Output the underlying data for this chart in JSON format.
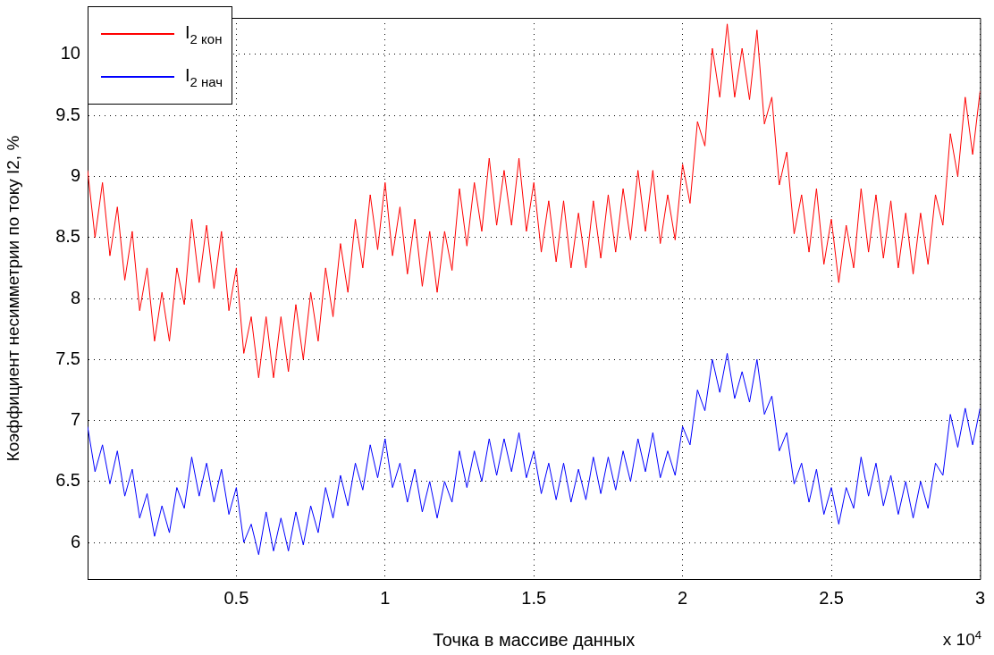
{
  "chart_data": {
    "type": "line",
    "xlabel": "Точка в массиве данных",
    "ylabel": "Коэффициент несимметрии по току I2, %",
    "annotations": [
      "x 10$^{4}$"
    ],
    "x": [
      0,
      0.025,
      0.05,
      0.075,
      0.1,
      0.125,
      0.15,
      0.175,
      0.2,
      0.225,
      0.25,
      0.275,
      0.3,
      0.325,
      0.35,
      0.375,
      0.4,
      0.425,
      0.45,
      0.475,
      0.5,
      0.525,
      0.55,
      0.575,
      0.6,
      0.625,
      0.65,
      0.675,
      0.7,
      0.725,
      0.75,
      0.775,
      0.8,
      0.825,
      0.85,
      0.875,
      0.9,
      0.925,
      0.95,
      0.975,
      1,
      1.025,
      1.05,
      1.075,
      1.1,
      1.125,
      1.15,
      1.175,
      1.2,
      1.225,
      1.25,
      1.275,
      1.3,
      1.325,
      1.35,
      1.375,
      1.4,
      1.425,
      1.45,
      1.475,
      1.5,
      1.525,
      1.55,
      1.575,
      1.6,
      1.625,
      1.65,
      1.675,
      1.7,
      1.725,
      1.75,
      1.775,
      1.8,
      1.825,
      1.85,
      1.875,
      1.9,
      1.925,
      1.95,
      1.975,
      2,
      2.025,
      2.05,
      2.075,
      2.1,
      2.125,
      2.15,
      2.175,
      2.2,
      2.225,
      2.25,
      2.275,
      2.3,
      2.325,
      2.35,
      2.375,
      2.4,
      2.425,
      2.45,
      2.475,
      2.5,
      2.525,
      2.55,
      2.575,
      2.6,
      2.625,
      2.65,
      2.675,
      2.7,
      2.725,
      2.75,
      2.775,
      2.8,
      2.825,
      2.85,
      2.875,
      2.9,
      2.925,
      2.95,
      2.975,
      3
    ],
    "series": [
      {
        "name": "I$_{2 кон}$",
        "color": "#ff0000",
        "values": [
          9.05,
          8.5,
          8.95,
          8.35,
          8.75,
          8.15,
          8.55,
          7.9,
          8.25,
          7.65,
          8.05,
          7.65,
          8.25,
          7.95,
          8.65,
          8.13,
          8.6,
          8.08,
          8.55,
          7.9,
          8.25,
          7.55,
          7.85,
          7.35,
          7.85,
          7.35,
          7.85,
          7.4,
          7.95,
          7.5,
          8.05,
          7.65,
          8.25,
          7.85,
          8.45,
          8.05,
          8.65,
          8.25,
          8.85,
          8.4,
          8.95,
          8.35,
          8.75,
          8.2,
          8.65,
          8.1,
          8.55,
          8.05,
          8.55,
          8.23,
          8.9,
          8.43,
          8.95,
          8.55,
          9.15,
          8.6,
          9.05,
          8.6,
          9.15,
          8.55,
          8.95,
          8.38,
          8.8,
          8.3,
          8.8,
          8.25,
          8.7,
          8.25,
          8.8,
          8.33,
          8.85,
          8.38,
          8.9,
          8.48,
          9.05,
          8.55,
          9.05,
          8.45,
          8.85,
          8.48,
          9.1,
          8.78,
          9.45,
          9.25,
          10.05,
          9.65,
          10.25,
          9.65,
          10.05,
          9.63,
          10.2,
          9.43,
          9.65,
          8.93,
          9.2,
          8.53,
          8.85,
          8.38,
          8.9,
          8.28,
          8.65,
          8.13,
          8.6,
          8.25,
          8.9,
          8.38,
          8.85,
          8.33,
          8.8,
          8.25,
          8.7,
          8.2,
          8.7,
          8.28,
          8.85,
          8.6,
          9.35,
          9,
          9.65,
          9.18,
          9.7
        ]
      },
      {
        "name": "I$_{2 нач}$",
        "color": "#0000ff",
        "values": [
          6.95,
          6.58,
          6.8,
          6.48,
          6.75,
          6.38,
          6.6,
          6.2,
          6.4,
          6.05,
          6.3,
          6.08,
          6.45,
          6.28,
          6.7,
          6.38,
          6.65,
          6.33,
          6.6,
          6.23,
          6.45,
          6,
          6.15,
          5.9,
          6.25,
          5.93,
          6.2,
          5.93,
          6.25,
          5.98,
          6.3,
          6.08,
          6.45,
          6.2,
          6.55,
          6.3,
          6.65,
          6.43,
          6.8,
          6.53,
          6.85,
          6.45,
          6.65,
          6.33,
          6.6,
          6.25,
          6.5,
          6.2,
          6.5,
          6.33,
          6.75,
          6.45,
          6.75,
          6.5,
          6.85,
          6.55,
          6.85,
          6.58,
          6.9,
          6.53,
          6.75,
          6.4,
          6.65,
          6.35,
          6.65,
          6.33,
          6.6,
          6.35,
          6.7,
          6.4,
          6.7,
          6.43,
          6.75,
          6.5,
          6.85,
          6.58,
          6.9,
          6.53,
          6.75,
          6.55,
          6.95,
          6.8,
          7.25,
          7.08,
          7.5,
          7.23,
          7.55,
          7.18,
          7.4,
          7.15,
          7.5,
          7.05,
          7.2,
          6.75,
          6.9,
          6.48,
          6.65,
          6.33,
          6.6,
          6.23,
          6.45,
          6.15,
          6.45,
          6.28,
          6.7,
          6.38,
          6.65,
          6.3,
          6.55,
          6.23,
          6.5,
          6.2,
          6.5,
          6.28,
          6.65,
          6.55,
          7.05,
          6.78,
          7.1,
          6.8,
          7.1
        ]
      }
    ],
    "xlim": [
      0,
      3
    ],
    "xticks": [
      0.5,
      1,
      1.5,
      2,
      2.5,
      3
    ],
    "ylim": [
      5.7,
      10.3
    ],
    "yticks": [
      6,
      6.5,
      7,
      7.5,
      8,
      8.5,
      9,
      9.5,
      10
    ],
    "grid": true,
    "legend": "top left",
    "marker": "none",
    "line_style": "solid"
  }
}
